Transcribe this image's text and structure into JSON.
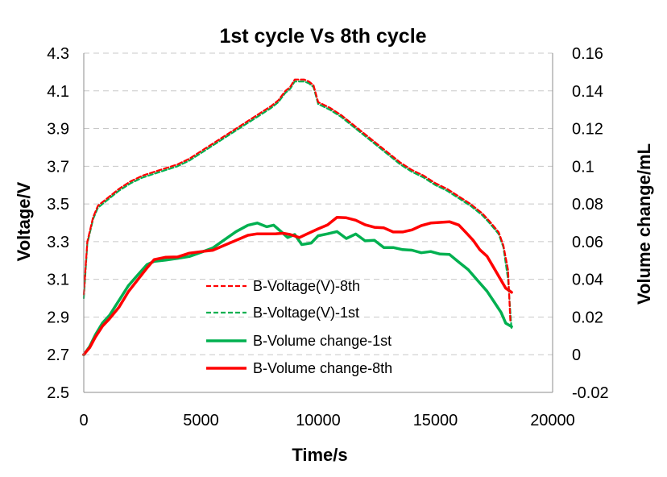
{
  "chart_data": {
    "type": "line",
    "title": "1st cycle Vs 8th cycle",
    "xlabel": "Time/s",
    "ylabel": "Voltage/V",
    "y2label": "Volume change/mL",
    "xlim": [
      0,
      20000
    ],
    "ylim": [
      2.5,
      4.3
    ],
    "y2lim": [
      -0.02,
      0.16
    ],
    "x_ticks": [
      "0",
      "5000",
      "10000",
      "15000",
      "20000"
    ],
    "x_tick_values": [
      0,
      5000,
      10000,
      15000,
      20000
    ],
    "y_ticks": [
      "2.5",
      "2.7",
      "2.9",
      "3.1",
      "3.3",
      "3.5",
      "3.7",
      "3.9",
      "4.1",
      "4.3"
    ],
    "y_tick_values": [
      2.5,
      2.7,
      2.9,
      3.1,
      3.3,
      3.5,
      3.7,
      3.9,
      4.1,
      4.3
    ],
    "y2_ticks": [
      "-0.02",
      "0",
      "0.02",
      "0.04",
      "0.06",
      "0.08",
      "0.1",
      "0.12",
      "0.14",
      "0.16"
    ],
    "y2_tick_values": [
      -0.02,
      0,
      0.02,
      0.04,
      0.06,
      0.08,
      0.1,
      0.12,
      0.14,
      0.16
    ],
    "grid": true,
    "legend_position": "center-left",
    "series": [
      {
        "name": "B-Voltage(V)-8th",
        "axis": "left",
        "color": "#ff0000",
        "dash": true,
        "x": [
          0,
          150,
          400,
          600,
          1000,
          1500,
          2000,
          2500,
          3000,
          3500,
          4000,
          4500,
          5000,
          5500,
          6000,
          6500,
          7000,
          7500,
          8000,
          8300,
          8600,
          8800,
          9000,
          9400,
          9600,
          9800,
          10000,
          10500,
          11000,
          11500,
          12000,
          12500,
          13000,
          13500,
          14000,
          14500,
          15000,
          15500,
          16000,
          16500,
          17000,
          17300,
          17700,
          17900,
          18100,
          18200
        ],
        "values": [
          3.02,
          3.3,
          3.43,
          3.49,
          3.53,
          3.58,
          3.62,
          3.65,
          3.67,
          3.69,
          3.71,
          3.74,
          3.78,
          3.82,
          3.86,
          3.9,
          3.94,
          3.98,
          4.02,
          4.05,
          4.1,
          4.12,
          4.16,
          4.16,
          4.15,
          4.13,
          4.04,
          4.01,
          3.97,
          3.92,
          3.87,
          3.82,
          3.77,
          3.72,
          3.68,
          3.65,
          3.61,
          3.58,
          3.54,
          3.5,
          3.45,
          3.41,
          3.35,
          3.28,
          3.15,
          2.87
        ]
      },
      {
        "name": "B-Voltage(V)-1st",
        "axis": "left",
        "color": "#00b050",
        "dash": true,
        "x": [
          0,
          150,
          400,
          600,
          1000,
          1500,
          2000,
          2500,
          3000,
          3500,
          4000,
          4500,
          5000,
          5500,
          6000,
          6500,
          7000,
          7500,
          8000,
          8300,
          8600,
          8800,
          9000,
          9400,
          9600,
          9800,
          10000,
          10500,
          11000,
          11500,
          12000,
          12500,
          13000,
          13500,
          14000,
          14500,
          15000,
          15500,
          16000,
          16500,
          17000,
          17300,
          17700,
          17900,
          18100,
          18250
        ],
        "values": [
          3.0,
          3.29,
          3.42,
          3.48,
          3.52,
          3.57,
          3.61,
          3.64,
          3.66,
          3.68,
          3.7,
          3.73,
          3.77,
          3.81,
          3.85,
          3.89,
          3.93,
          3.97,
          4.01,
          4.04,
          4.09,
          4.11,
          4.15,
          4.15,
          4.14,
          4.12,
          4.03,
          4.0,
          3.96,
          3.91,
          3.86,
          3.81,
          3.76,
          3.71,
          3.67,
          3.64,
          3.6,
          3.57,
          3.53,
          3.49,
          3.44,
          3.4,
          3.34,
          3.27,
          3.1,
          2.83
        ]
      },
      {
        "name": "B-Volume change-1st",
        "axis": "right",
        "color": "#00b050",
        "dash": false,
        "x": [
          0,
          250,
          500,
          800,
          1100,
          1500,
          1900,
          2300,
          2700,
          3000,
          3500,
          4000,
          4500,
          5000,
          5500,
          6000,
          6500,
          7000,
          7400,
          7800,
          8100,
          8400,
          8700,
          9000,
          9300,
          9700,
          10000,
          10400,
          10800,
          11200,
          11600,
          12000,
          12400,
          12800,
          13200,
          13600,
          14000,
          14400,
          14800,
          15200,
          15600,
          16000,
          16400,
          16800,
          17200,
          17500,
          17800,
          18000,
          18250
        ],
        "values": [
          0.0,
          0.004,
          0.01,
          0.016,
          0.02,
          0.028,
          0.036,
          0.042,
          0.048,
          0.05,
          0.051,
          0.052,
          0.053,
          0.055,
          0.057,
          0.061,
          0.065,
          0.068,
          0.069,
          0.067,
          0.068,
          0.065,
          0.062,
          0.064,
          0.059,
          0.06,
          0.064,
          0.065,
          0.066,
          0.062,
          0.064,
          0.06,
          0.06,
          0.056,
          0.056,
          0.055,
          0.055,
          0.054,
          0.055,
          0.054,
          0.054,
          0.05,
          0.046,
          0.04,
          0.034,
          0.028,
          0.022,
          0.016,
          0.014
        ]
      },
      {
        "name": "B-Volume change-8th",
        "axis": "right",
        "color": "#ff0000",
        "dash": false,
        "x": [
          0,
          250,
          500,
          800,
          1100,
          1500,
          1900,
          2300,
          2700,
          3000,
          3500,
          4000,
          4500,
          5000,
          5500,
          6000,
          6500,
          7000,
          7400,
          7800,
          8200,
          8500,
          8800,
          9200,
          9600,
          10000,
          10400,
          10800,
          11200,
          11600,
          12000,
          12400,
          12800,
          13200,
          13600,
          14000,
          14400,
          14800,
          15200,
          15600,
          16000,
          16300,
          16600,
          16900,
          17200,
          17500,
          17800,
          18000,
          18250
        ],
        "values": [
          0.0,
          0.004,
          0.01,
          0.016,
          0.02,
          0.026,
          0.034,
          0.04,
          0.046,
          0.05,
          0.051,
          0.051,
          0.053,
          0.054,
          0.055,
          0.058,
          0.061,
          0.064,
          0.065,
          0.065,
          0.065,
          0.065,
          0.064,
          0.062,
          0.064,
          0.066,
          0.068,
          0.072,
          0.072,
          0.071,
          0.069,
          0.068,
          0.068,
          0.066,
          0.066,
          0.067,
          0.069,
          0.07,
          0.07,
          0.07,
          0.068,
          0.064,
          0.06,
          0.055,
          0.052,
          0.046,
          0.04,
          0.036,
          0.034
        ]
      }
    ]
  }
}
